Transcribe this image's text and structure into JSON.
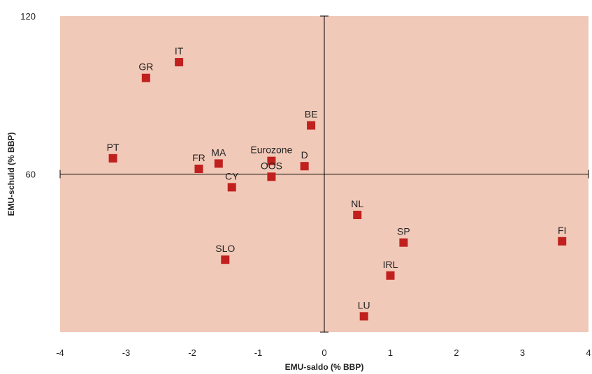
{
  "chart_data": {
    "type": "scatter",
    "xlabel": "EMU-saldo (% BBP)",
    "ylabel": "EMU-schuld (% BBP)",
    "xlim": [
      -4,
      4
    ],
    "ylim": [
      0,
      120
    ],
    "x_ticks": [
      -4,
      -3,
      -2,
      -1,
      0,
      1,
      2,
      3,
      4
    ],
    "x_tick_labels": [
      "-4",
      "-3",
      "-2",
      "-1",
      "0",
      "1",
      "2",
      "3",
      "4"
    ],
    "y_ticks": [
      120,
      60
    ],
    "y_tick_labels": [
      "120",
      "60"
    ],
    "crosshair": {
      "x": 0,
      "y": 60
    },
    "grid": false,
    "colors": {
      "plot_background": "#f1c9b8",
      "marker": "#c0201e"
    },
    "points": [
      {
        "label": "IT",
        "x": -2.2,
        "y": 102.5
      },
      {
        "label": "GR",
        "x": -2.7,
        "y": 96.5
      },
      {
        "label": "BE",
        "x": -0.2,
        "y": 78.5
      },
      {
        "label": "PT",
        "x": -3.2,
        "y": 66
      },
      {
        "label": "FR",
        "x": -1.9,
        "y": 62
      },
      {
        "label": "MA",
        "x": -1.6,
        "y": 64
      },
      {
        "label": "Eurozone",
        "x": -0.8,
        "y": 65
      },
      {
        "label": "D",
        "x": -0.3,
        "y": 63
      },
      {
        "label": "CY",
        "x": -1.4,
        "y": 55
      },
      {
        "label": "OOS",
        "x": -0.8,
        "y": 59
      },
      {
        "label": "NL",
        "x": 0.5,
        "y": 44.5
      },
      {
        "label": "SP",
        "x": 1.2,
        "y": 34
      },
      {
        "label": "FI",
        "x": 3.6,
        "y": 34.5
      },
      {
        "label": "SLO",
        "x": -1.5,
        "y": 27.5
      },
      {
        "label": "IRL",
        "x": 1.0,
        "y": 21.5
      },
      {
        "label": "LU",
        "x": 0.6,
        "y": 6
      }
    ]
  }
}
